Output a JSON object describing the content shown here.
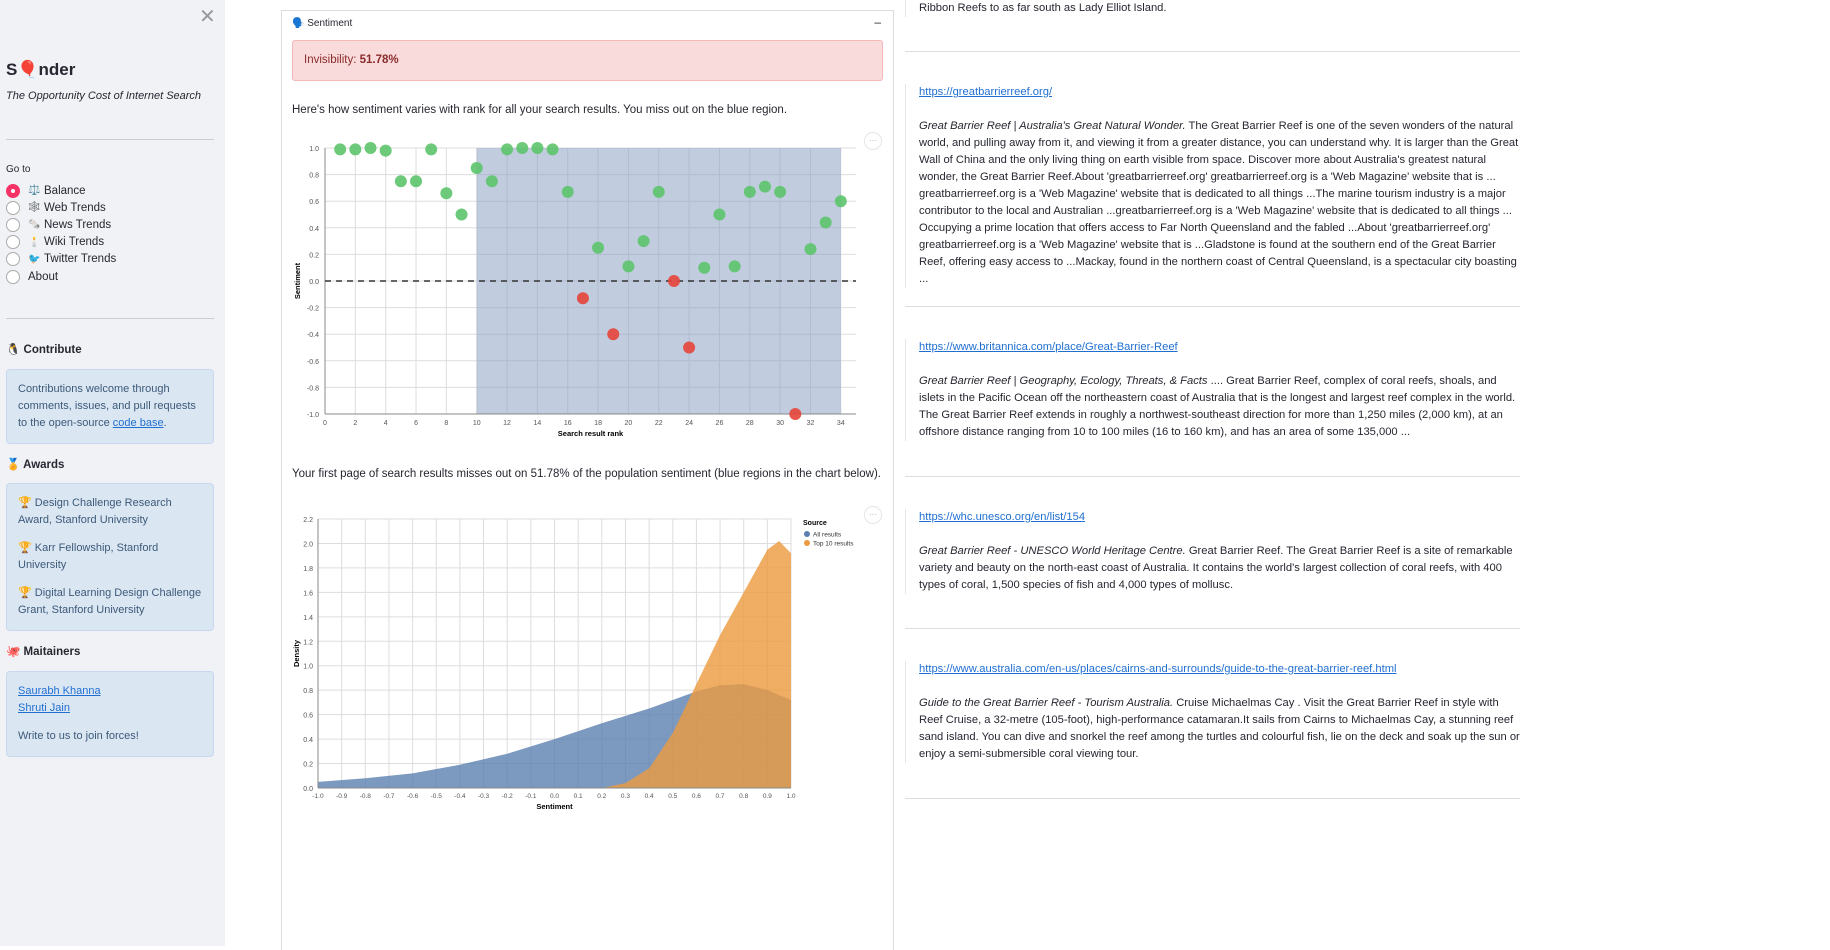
{
  "sidebar": {
    "close": "✕",
    "title_pre": "S",
    "title_balloon": "🎈",
    "title_post": "nder",
    "subtitle": "The Opportunity Cost of Internet Search",
    "goto_label": "Go to",
    "nav": [
      {
        "emoji": "⚖️",
        "label": "Balance",
        "selected": true
      },
      {
        "emoji": "🕸️",
        "label": "Web Trends"
      },
      {
        "emoji": "🗞️",
        "label": "News Trends"
      },
      {
        "emoji": "🕯️",
        "label": "Wiki Trends"
      },
      {
        "emoji": "🐦",
        "label": "Twitter Trends"
      },
      {
        "emoji": "",
        "label": "About"
      }
    ],
    "contribute": {
      "emoji": "🐧",
      "title": "Contribute",
      "text": "Contributions welcome through comments, issues, and pull requests to the open-source ",
      "link": "code base",
      "end": "."
    },
    "awards": {
      "emoji": "🏅",
      "title": "Awards",
      "items": [
        "🏆 Design Challenge Research Award, Stanford University",
        "🏆 Karr Fellowship, Stanford University",
        "🏆 Digital Learning Design Challenge Grant, Stanford University"
      ]
    },
    "maintainers": {
      "emoji": "🐙",
      "title": "Maitainers",
      "people": [
        "Saurabh Khanna",
        "Shruti Jain"
      ],
      "note": "Write to us to join forces!"
    }
  },
  "main": {
    "expander_icon": "🗣️",
    "expander_title": "Sentiment",
    "collapse": "–",
    "alert_label": "Invisibility: ",
    "alert_value": "51.78%",
    "para1": "Here's how sentiment varies with rank for all your search results. You miss out on the blue region.",
    "para2": "Your first page of search results misses out on 51.78% of the population sentiment (blue regions in the chart below).",
    "more": "···"
  },
  "chart_data": [
    {
      "type": "scatter",
      "xlabel": "Search result rank",
      "ylabel": "Sentiment",
      "xlim": [
        0,
        35
      ],
      "ylim": [
        -1,
        1
      ],
      "xticks": [
        0,
        2,
        4,
        6,
        8,
        10,
        12,
        14,
        16,
        18,
        20,
        22,
        24,
        26,
        28,
        30,
        32,
        34
      ],
      "yticks": [
        1.0,
        0.8,
        0.6,
        0.4,
        0.2,
        0.0,
        -0.2,
        -0.4,
        -0.6,
        -0.8,
        -1.0
      ],
      "shaded_region": [
        10,
        34
      ],
      "reference_line": 0,
      "colors": {
        "positive": "#5cc46c",
        "negative": "#e5453a",
        "shade": "#8ea3c4"
      },
      "x": [
        1,
        2,
        3,
        4,
        5,
        6,
        7,
        8,
        9,
        10,
        11,
        12,
        13,
        14,
        15,
        16,
        17,
        18,
        19,
        20,
        21,
        22,
        23,
        24,
        25,
        26,
        27,
        28,
        29,
        30,
        31,
        32,
        33,
        34
      ],
      "y": [
        0.99,
        0.99,
        1.0,
        0.98,
        0.75,
        0.75,
        0.99,
        0.66,
        0.5,
        0.85,
        0.75,
        0.99,
        1.0,
        1.0,
        0.99,
        0.67,
        -0.13,
        0.25,
        -0.4,
        0.11,
        0.3,
        0.67,
        0.0,
        -0.5,
        0.1,
        0.5,
        0.11,
        0.67,
        0.71,
        0.67,
        -1.0,
        0.24,
        0.44,
        0.6
      ]
    },
    {
      "type": "area",
      "xlabel": "Sentiment",
      "ylabel": "Density",
      "xlim": [
        -1,
        1
      ],
      "ylim": [
        0,
        2.2
      ],
      "xticks": [
        "-1.0",
        "-0.9",
        "-0.8",
        "-0.7",
        "-0.6",
        "-0.5",
        "-0.4",
        "-0.3",
        "-0.2",
        "-0.1",
        "0.0",
        "0.1",
        "0.2",
        "0.3",
        "0.4",
        "0.5",
        "0.6",
        "0.7",
        "0.8",
        "0.9",
        "1.0"
      ],
      "yticks": [
        "0.0",
        "0.2",
        "0.4",
        "0.6",
        "0.8",
        "1.0",
        "1.2",
        "1.4",
        "1.6",
        "1.8",
        "2.0",
        "2.2"
      ],
      "legend_title": "Source",
      "legend_position": "top-right",
      "series": [
        {
          "name": "All results",
          "color": "#5b7fb0",
          "x": [
            -1,
            -0.8,
            -0.6,
            -0.4,
            -0.2,
            0,
            0.2,
            0.4,
            0.5,
            0.6,
            0.7,
            0.8,
            0.9,
            1.0
          ],
          "y": [
            0.05,
            0.08,
            0.12,
            0.19,
            0.28,
            0.4,
            0.53,
            0.65,
            0.72,
            0.79,
            0.84,
            0.85,
            0.8,
            0.72
          ]
        },
        {
          "name": "Top 10 results",
          "color": "#ec9a3f",
          "x": [
            0.2,
            0.3,
            0.4,
            0.5,
            0.6,
            0.7,
            0.8,
            0.9,
            0.95,
            1.0
          ],
          "y": [
            0,
            0.04,
            0.16,
            0.45,
            0.85,
            1.25,
            1.6,
            1.95,
            2.02,
            1.92
          ]
        }
      ]
    }
  ],
  "results": [
    {
      "url": "",
      "title": "",
      "text": "Ribbon Reefs to as far south as Lady Elliot Island."
    },
    {
      "url": "https://greatbarrierreef.org/",
      "title": "Great Barrier Reef | Australia's Great Natural Wonder.",
      "text": " The Great Barrier Reef is one of the seven wonders of the natural world, and pulling away from it, and viewing it from a greater distance, you can understand why. It is larger than the Great Wall of China and the only living thing on earth visible from space. Discover more about Australia's greatest natural wonder, the Great Barrier Reef.About 'greatbarrierreef.org' greatbarrierreef.org is a 'Web Magazine' website that is ... greatbarrierreef.org is a 'Web Magazine' website that is dedicated to all things ...The marine tourism industry is a major contributor to the local and Australian ...greatbarrierreef.org is a 'Web Magazine' website that is dedicated to all things ... Occupying a prime location that offers access to Far North Queensland and the fabled ...About 'greatbarrierreef.org' greatbarrierreef.org is a 'Web Magazine' website that is ...Gladstone is found at the southern end of the Great Barrier Reef, offering easy access to ...Mackay, found in the northern coast of Central Queensland, is a spectacular city boasting ..."
    },
    {
      "url": "https://www.britannica.com/place/Great-Barrier-Reef",
      "title": "Great Barrier Reef | Geography, Ecology, Threats, & Facts",
      "text": " .... Great Barrier Reef, complex of coral reefs, shoals, and islets in the Pacific Ocean off the northeastern coast of Australia that is the longest and largest reef complex in the world. The Great Barrier Reef extends in roughly a northwest-southeast direction for more than 1,250 miles (2,000 km), at an offshore distance ranging from 10 to 100 miles (16 to 160 km), and has an area of some 135,000 ..."
    },
    {
      "url": "https://whc.unesco.org/en/list/154",
      "title": "Great Barrier Reef - UNESCO World Heritage Centre.",
      "text": " Great Barrier Reef. The Great Barrier Reef is a site of remarkable variety and beauty on the north-east coast of Australia. It contains the world's largest collection of coral reefs, with 400 types of coral, 1,500 species of fish and 4,000 types of mollusc."
    },
    {
      "url": "https://www.australia.com/en-us/places/cairns-and-surrounds/guide-to-the-great-barrier-reef.html",
      "title": "Guide to the Great Barrier Reef - Tourism Australia.",
      "text": " Cruise Michaelmas Cay . Visit the Great Barrier Reef in style with Reef Cruise, a 32-metre (105-foot), high-performance catamaran.It sails from Cairns to Michaelmas Cay, a stunning reef sand island. You can dive and snorkel the reef among the turtles and colourful fish, lie on the deck and soak up the sun or enjoy a semi-submersible coral viewing tour."
    }
  ]
}
